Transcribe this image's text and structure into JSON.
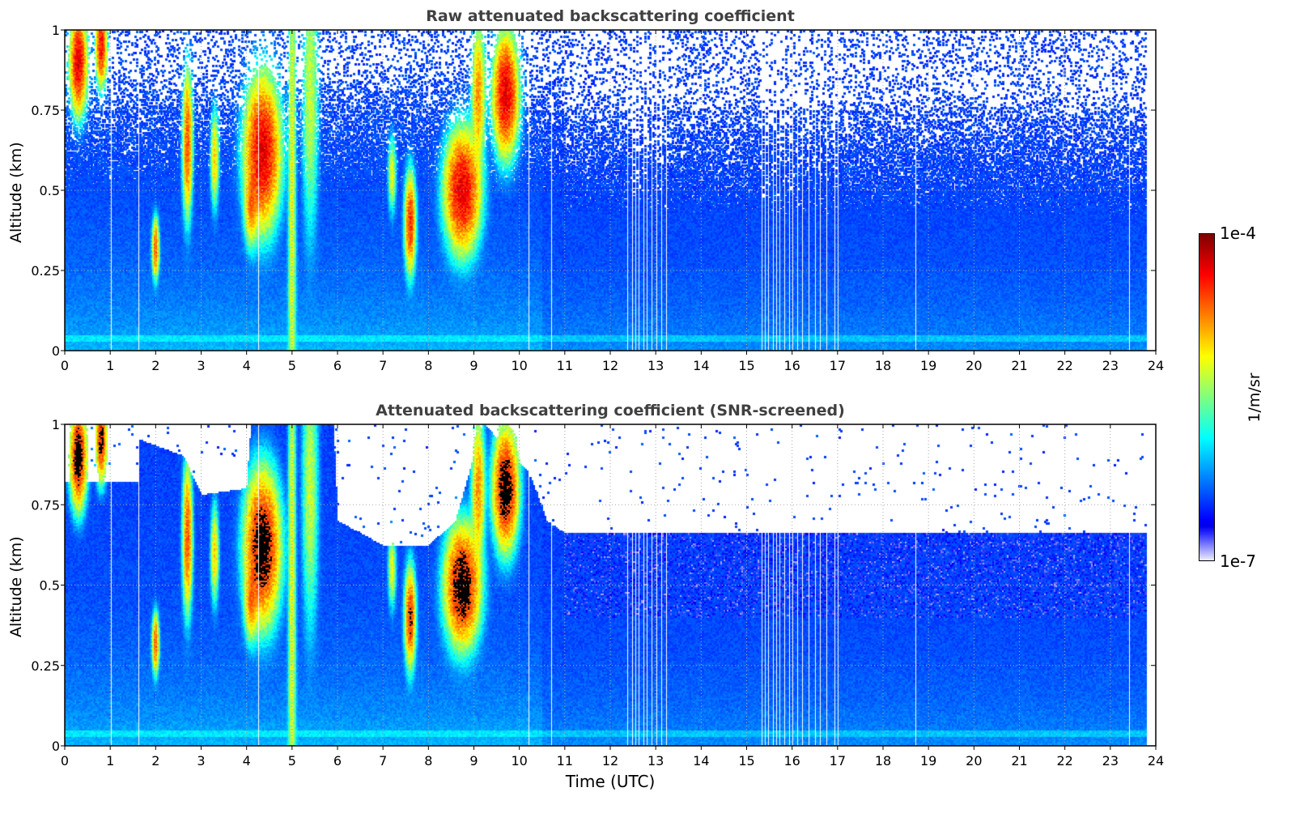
{
  "chart_data": {
    "type": "heatmap",
    "panels": [
      {
        "title": "Raw attenuated backscattering coefficient",
        "ylabel": "Altitude (km)",
        "screened": false
      },
      {
        "title": "Attenuated backscattering coefficient (SNR-screened)",
        "ylabel": "Altitude (km)",
        "xlabel": "Time (UTC)",
        "screened": true
      }
    ],
    "xlim": [
      0,
      24
    ],
    "ylim": [
      0,
      1
    ],
    "xticks": [
      "0",
      "1",
      "2",
      "3",
      "4",
      "5",
      "6",
      "7",
      "8",
      "9",
      "10",
      "11",
      "12",
      "13",
      "14",
      "15",
      "16",
      "17",
      "18",
      "19",
      "20",
      "21",
      "22",
      "23",
      "24"
    ],
    "yticks": [
      {
        "v": 0,
        "label": "0"
      },
      {
        "v": 0.25,
        "label": "0.25"
      },
      {
        "v": 0.5,
        "label": "0.5"
      },
      {
        "v": 0.75,
        "label": "0.75"
      },
      {
        "v": 1,
        "label": "1"
      }
    ],
    "grid": true,
    "colorbar": {
      "label": "1/m/sr",
      "min_label": "1e-7",
      "max_label": "1e-4",
      "log_min": -7,
      "log_max": -4,
      "scale": "log",
      "colormap": "jet"
    },
    "data_end_time": 23.8,
    "missing_profiles_hours": [
      1.0,
      1.6,
      4.22,
      10.2,
      10.7,
      12.35,
      12.45,
      12.55,
      12.62,
      12.7,
      12.8,
      12.9,
      13.0,
      13.1,
      13.2,
      15.3,
      15.38,
      15.45,
      15.55,
      15.62,
      15.7,
      15.8,
      15.9,
      16.0,
      16.1,
      16.2,
      16.35,
      16.5,
      16.6,
      16.75,
      16.9,
      17.0,
      18.7,
      23.4
    ],
    "cloud_features": [
      {
        "time": 0.3,
        "altitude": 0.9,
        "dt": 0.12,
        "dh": 0.1,
        "log_peak": -4.3
      },
      {
        "time": 0.8,
        "altitude": 0.95,
        "dt": 0.08,
        "dh": 0.08,
        "log_peak": -4.4
      },
      {
        "time": 2.0,
        "altitude": 0.32,
        "dt": 0.05,
        "dh": 0.06,
        "log_peak": -4.6
      },
      {
        "time": 2.7,
        "altitude": 0.65,
        "dt": 0.07,
        "dh": 0.15,
        "log_peak": -4.6
      },
      {
        "time": 3.3,
        "altitude": 0.6,
        "dt": 0.06,
        "dh": 0.1,
        "log_peak": -5.0
      },
      {
        "time": 4.35,
        "altitude": 0.62,
        "dt": 0.25,
        "dh": 0.15,
        "log_peak": -4.3
      },
      {
        "time": 4.1,
        "altitude": 0.45,
        "dt": 0.1,
        "dh": 0.08,
        "log_peak": -4.8
      },
      {
        "time": 5.0,
        "altitude": 0.5,
        "dt": 0.06,
        "dh": 0.8,
        "log_peak": -5.2
      },
      {
        "time": 5.4,
        "altitude": 0.8,
        "dt": 0.12,
        "dh": 0.3,
        "log_peak": -5.3
      },
      {
        "time": 7.6,
        "altitude": 0.4,
        "dt": 0.08,
        "dh": 0.1,
        "log_peak": -4.5
      },
      {
        "time": 7.2,
        "altitude": 0.55,
        "dt": 0.06,
        "dh": 0.08,
        "log_peak": -5.2
      },
      {
        "time": 8.75,
        "altitude": 0.5,
        "dt": 0.25,
        "dh": 0.12,
        "log_peak": -4.3
      },
      {
        "time": 9.1,
        "altitude": 0.8,
        "dt": 0.1,
        "dh": 0.15,
        "log_peak": -4.8
      },
      {
        "time": 9.7,
        "altitude": 0.8,
        "dt": 0.18,
        "dh": 0.12,
        "log_peak": -4.3
      }
    ]
  }
}
